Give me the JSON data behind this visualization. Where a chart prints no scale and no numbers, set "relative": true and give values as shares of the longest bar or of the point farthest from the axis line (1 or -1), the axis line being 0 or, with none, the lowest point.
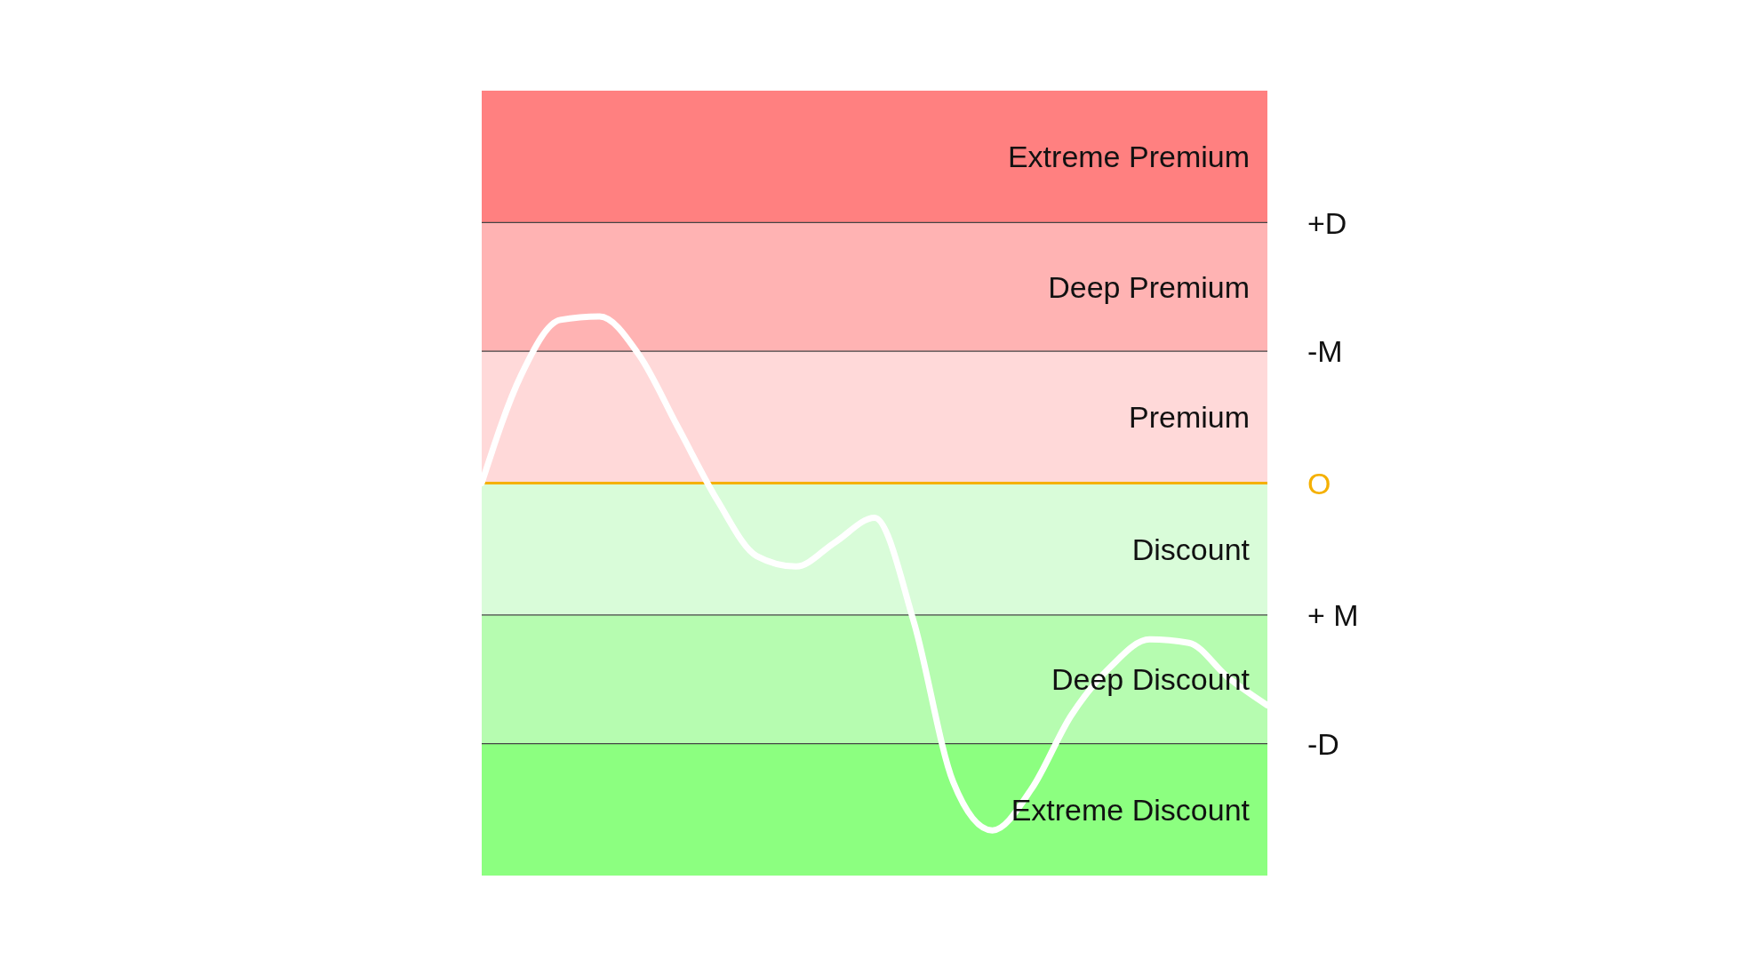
{
  "chart_data": {
    "type": "line",
    "relative": true,
    "tick_labels": false,
    "categories": [
      null,
      null,
      null,
      null,
      null,
      null,
      null,
      null,
      null,
      null,
      null,
      null,
      null,
      null,
      null,
      null,
      null,
      null,
      null,
      null,
      null
    ],
    "series": [
      {
        "color": "#ffffff",
        "values": [
          0,
          0.31,
          0.47,
          0.48,
          0.37,
          0.16,
          -0.05,
          -0.21,
          -0.24,
          -0.17,
          -0.1,
          -0.4,
          -0.86,
          -1,
          -0.88,
          -0.67,
          -0.53,
          -0.45,
          -0.46,
          -0.56,
          -0.64
        ]
      }
    ],
    "bands": [
      {
        "axis": "y",
        "from": 0.75,
        "to": 1.13,
        "label": "Extreme Premium",
        "color": "#ff8080"
      },
      {
        "axis": "y",
        "from": 0.38,
        "to": 0.75,
        "label": "Deep  Premium",
        "color": "#ffb3b3"
      },
      {
        "axis": "y",
        "from": 0,
        "to": 0.38,
        "label": "Premium",
        "color": "#ffd9d9"
      },
      {
        "axis": "y",
        "from": -0.38,
        "to": 0,
        "label": "Discount",
        "color": "#d9fcd9"
      },
      {
        "axis": "y",
        "from": -0.75,
        "to": -0.38,
        "label": "Deep Discount",
        "color": "#b6fcb0"
      },
      {
        "axis": "y",
        "from": -1.13,
        "to": -0.75,
        "label": "Extreme Discount",
        "color": "#8cff80"
      }
    ],
    "ref_lines": [
      {
        "axis": "y",
        "value": 0.75,
        "label": "+D",
        "color": "#444444"
      },
      {
        "axis": "y",
        "value": 0.38,
        "label": "-M",
        "color": "#444444"
      },
      {
        "axis": "y",
        "value": 0,
        "label": "O",
        "color": "#f5b000"
      },
      {
        "axis": "y",
        "value": -0.38,
        "label": "+ M",
        "color": "#444444"
      },
      {
        "axis": "y",
        "value": -0.75,
        "label": "-D",
        "color": "#444444"
      }
    ]
  }
}
